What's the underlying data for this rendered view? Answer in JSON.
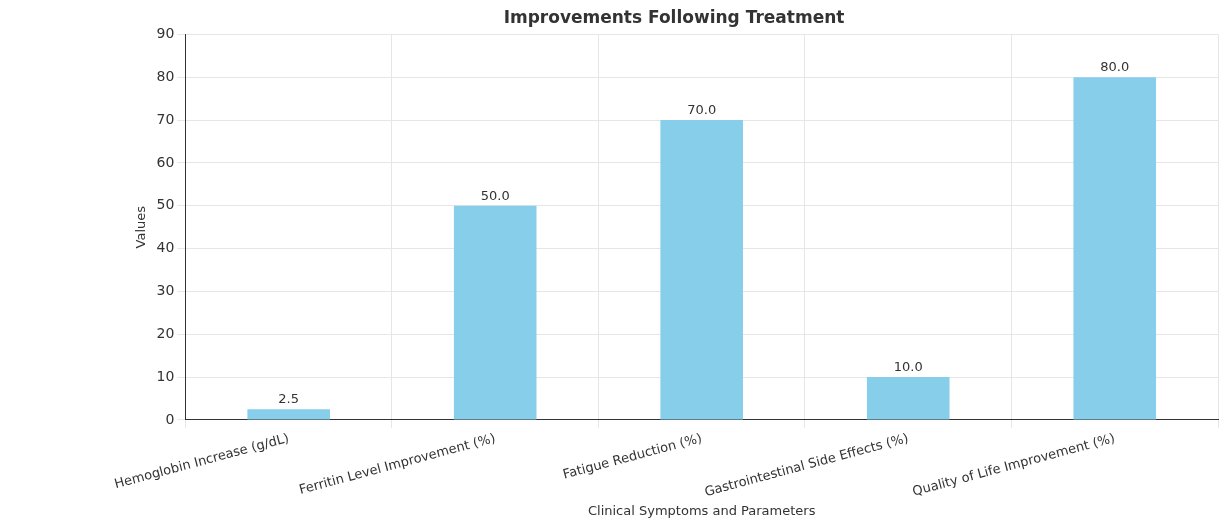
{
  "chart_data": {
    "type": "bar",
    "title": "Improvements Following Treatment",
    "xlabel": "Clinical Symptoms and Parameters",
    "ylabel": "Values",
    "categories": [
      "Hemoglobin Increase (g/dL)",
      "Ferritin Level Improvement (%)",
      "Fatigue Reduction (%)",
      "Gastrointestinal Side Effects (%)",
      "Quality of Life Improvement (%)"
    ],
    "values": [
      2.5,
      50,
      70,
      10,
      80
    ],
    "value_labels": [
      "2.5",
      "50.0",
      "70.0",
      "10.0",
      "80.0"
    ],
    "color": "#87ceeb",
    "ylim": [
      0,
      90
    ],
    "yticks": [
      0,
      10,
      20,
      30,
      40,
      50,
      60,
      70,
      80,
      90
    ],
    "grid": true,
    "legend": false
  }
}
